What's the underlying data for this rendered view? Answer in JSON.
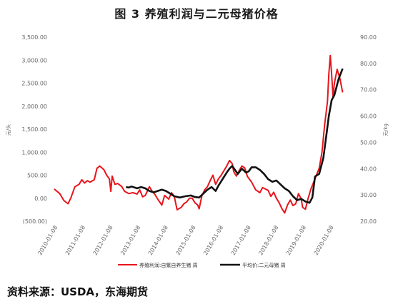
{
  "title": "图 3 养殖利润与二元母猪价格",
  "source": "资料来源：USDA，东海期货",
  "chart_data": {
    "type": "line",
    "left_axis": {
      "unit": "元/头",
      "ylim": [
        -500,
        3500
      ],
      "ticks": [
        "(500.00)",
        "0.00",
        "500.00",
        "1,000.00",
        "1,500.00",
        "2,000.00",
        "2,500.00",
        "3,000.00",
        "3,500.00"
      ]
    },
    "right_axis": {
      "unit": "元/kg",
      "ylim": [
        20,
        90
      ],
      "ticks": [
        "20.00",
        "30.00",
        "40.00",
        "50.00",
        "60.00",
        "70.00",
        "80.00",
        "90.00"
      ]
    },
    "x_ticks": [
      "2010-01-08",
      "2011-01-08",
      "2012-01-08",
      "2013-01-08",
      "2014-01-08",
      "2015-01-08",
      "2016-01-08",
      "2017-01-08",
      "2018-01-08",
      "2019-01-08",
      "2020-01-08"
    ],
    "xlim": [
      2009.9,
      2020.85
    ],
    "series": [
      {
        "name": "养殖利润:自繁自养生猪  周",
        "axis": "left",
        "color": "#e8141b",
        "points": [
          [
            2010.0,
            200
          ],
          [
            2010.2,
            100
          ],
          [
            2010.35,
            -50
          ],
          [
            2010.5,
            -120
          ],
          [
            2010.6,
            0
          ],
          [
            2010.75,
            250
          ],
          [
            2010.9,
            300
          ],
          [
            2011.0,
            400
          ],
          [
            2011.1,
            330
          ],
          [
            2011.2,
            380
          ],
          [
            2011.3,
            350
          ],
          [
            2011.45,
            400
          ],
          [
            2011.55,
            650
          ],
          [
            2011.65,
            700
          ],
          [
            2011.8,
            620
          ],
          [
            2011.9,
            500
          ],
          [
            2012.0,
            420
          ],
          [
            2012.05,
            150
          ],
          [
            2012.1,
            480
          ],
          [
            2012.2,
            300
          ],
          [
            2012.3,
            320
          ],
          [
            2012.45,
            250
          ],
          [
            2012.55,
            150
          ],
          [
            2012.7,
            100
          ],
          [
            2012.85,
            120
          ],
          [
            2013.0,
            90
          ],
          [
            2013.1,
            180
          ],
          [
            2013.2,
            30
          ],
          [
            2013.3,
            60
          ],
          [
            2013.45,
            250
          ],
          [
            2013.55,
            150
          ],
          [
            2013.65,
            80
          ],
          [
            2013.75,
            -20
          ],
          [
            2013.9,
            -150
          ],
          [
            2014.0,
            60
          ],
          [
            2014.15,
            -20
          ],
          [
            2014.25,
            120
          ],
          [
            2014.35,
            40
          ],
          [
            2014.45,
            -250
          ],
          [
            2014.6,
            -200
          ],
          [
            2014.7,
            -120
          ],
          [
            2014.8,
            -80
          ],
          [
            2014.9,
            0
          ],
          [
            2015.0,
            0
          ],
          [
            2015.1,
            -100
          ],
          [
            2015.2,
            -150
          ],
          [
            2015.25,
            -230
          ],
          [
            2015.35,
            50
          ],
          [
            2015.45,
            180
          ],
          [
            2015.55,
            250
          ],
          [
            2015.65,
            380
          ],
          [
            2015.75,
            500
          ],
          [
            2015.85,
            300
          ],
          [
            2015.95,
            420
          ],
          [
            2016.05,
            500
          ],
          [
            2016.15,
            600
          ],
          [
            2016.25,
            700
          ],
          [
            2016.35,
            820
          ],
          [
            2016.45,
            750
          ],
          [
            2016.5,
            580
          ],
          [
            2016.6,
            480
          ],
          [
            2016.7,
            600
          ],
          [
            2016.8,
            700
          ],
          [
            2016.9,
            660
          ],
          [
            2017.0,
            470
          ],
          [
            2017.15,
            350
          ],
          [
            2017.3,
            180
          ],
          [
            2017.45,
            120
          ],
          [
            2017.55,
            230
          ],
          [
            2017.65,
            200
          ],
          [
            2017.75,
            170
          ],
          [
            2017.85,
            40
          ],
          [
            2017.95,
            130
          ],
          [
            2018.05,
            0
          ],
          [
            2018.15,
            -100
          ],
          [
            2018.25,
            -230
          ],
          [
            2018.35,
            -320
          ],
          [
            2018.45,
            -150
          ],
          [
            2018.55,
            -40
          ],
          [
            2018.65,
            -160
          ],
          [
            2018.75,
            -120
          ],
          [
            2018.85,
            100
          ],
          [
            2018.95,
            -20
          ],
          [
            2019.0,
            -200
          ],
          [
            2019.1,
            -240
          ],
          [
            2019.2,
            0
          ],
          [
            2019.3,
            200
          ],
          [
            2019.4,
            350
          ],
          [
            2019.5,
            500
          ],
          [
            2019.6,
            650
          ],
          [
            2019.7,
            1000
          ],
          [
            2019.8,
            1600
          ],
          [
            2019.9,
            2100
          ],
          [
            2019.95,
            2700
          ],
          [
            2020.0,
            3100
          ],
          [
            2020.05,
            2700
          ],
          [
            2020.1,
            2200
          ],
          [
            2020.15,
            2500
          ],
          [
            2020.25,
            2800
          ],
          [
            2020.35,
            2600
          ],
          [
            2020.45,
            2300
          ]
        ]
      },
      {
        "name": "平均价:二元母猪  周",
        "axis": "right",
        "color": "#111111",
        "points": [
          [
            2012.6,
            33
          ],
          [
            2012.7,
            32.8
          ],
          [
            2012.8,
            33.2
          ],
          [
            2013.0,
            32.5
          ],
          [
            2013.15,
            33
          ],
          [
            2013.3,
            32.5
          ],
          [
            2013.45,
            31.5
          ],
          [
            2013.6,
            31
          ],
          [
            2013.75,
            31.5
          ],
          [
            2013.9,
            32
          ],
          [
            2014.05,
            31.5
          ],
          [
            2014.2,
            30.5
          ],
          [
            2014.35,
            29.5
          ],
          [
            2014.55,
            29
          ],
          [
            2014.75,
            29.5
          ],
          [
            2014.95,
            29.8
          ],
          [
            2015.1,
            29.2
          ],
          [
            2015.25,
            29
          ],
          [
            2015.4,
            30.5
          ],
          [
            2015.55,
            32
          ],
          [
            2015.7,
            33
          ],
          [
            2015.85,
            31.5
          ],
          [
            2015.95,
            33.5
          ],
          [
            2016.1,
            36
          ],
          [
            2016.25,
            38.5
          ],
          [
            2016.35,
            40
          ],
          [
            2016.45,
            41
          ],
          [
            2016.55,
            39.5
          ],
          [
            2016.65,
            38
          ],
          [
            2016.8,
            40
          ],
          [
            2016.95,
            38.5
          ],
          [
            2017.05,
            39
          ],
          [
            2017.15,
            40.5
          ],
          [
            2017.3,
            40.5
          ],
          [
            2017.45,
            39.5
          ],
          [
            2017.6,
            38
          ],
          [
            2017.75,
            36
          ],
          [
            2017.9,
            35
          ],
          [
            2018.05,
            35.5
          ],
          [
            2018.2,
            34
          ],
          [
            2018.35,
            32.5
          ],
          [
            2018.5,
            31.5
          ],
          [
            2018.65,
            29.5
          ],
          [
            2018.8,
            28
          ],
          [
            2018.95,
            28.5
          ],
          [
            2019.1,
            27.5
          ],
          [
            2019.25,
            27
          ],
          [
            2019.35,
            29
          ],
          [
            2019.45,
            37
          ],
          [
            2019.6,
            38
          ],
          [
            2019.75,
            44
          ],
          [
            2019.85,
            52
          ],
          [
            2019.95,
            60
          ],
          [
            2020.05,
            66
          ],
          [
            2020.15,
            68
          ],
          [
            2020.3,
            74
          ],
          [
            2020.45,
            78
          ]
        ]
      }
    ]
  }
}
